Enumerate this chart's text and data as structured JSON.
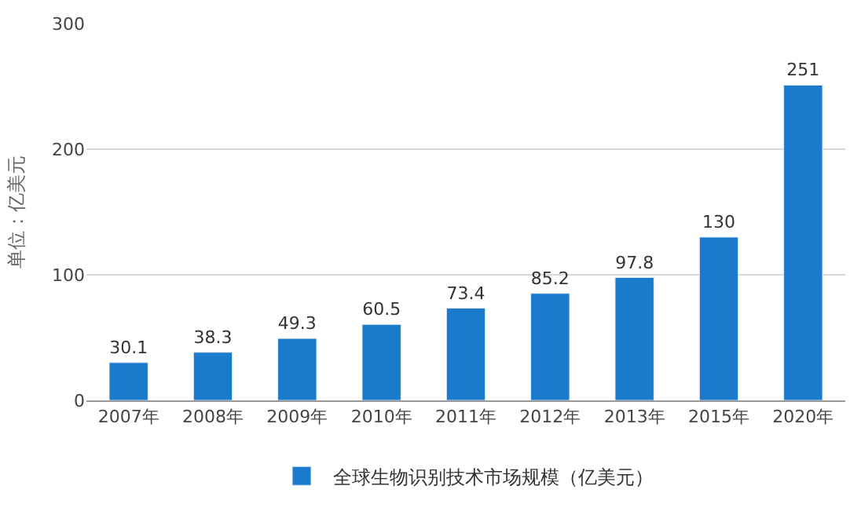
{
  "chart_data": {
    "type": "bar",
    "ylabel": "单位：亿美元",
    "categories": [
      "2007年",
      "2008年",
      "2009年",
      "2010年",
      "2011年",
      "2012年",
      "2013年",
      "2015年",
      "2020年"
    ],
    "series": [
      {
        "name": "全球生物识别技术市场规模（亿美元）",
        "color": "#1a7acb",
        "values": [
          30.1,
          38.3,
          49.3,
          60.5,
          73.4,
          85.2,
          97.8,
          130,
          251
        ]
      }
    ],
    "ylim": [
      0,
      300
    ],
    "yticks": [
      0,
      100,
      200,
      300
    ],
    "grid": "y",
    "legend": "bottom",
    "data_labels": true
  }
}
